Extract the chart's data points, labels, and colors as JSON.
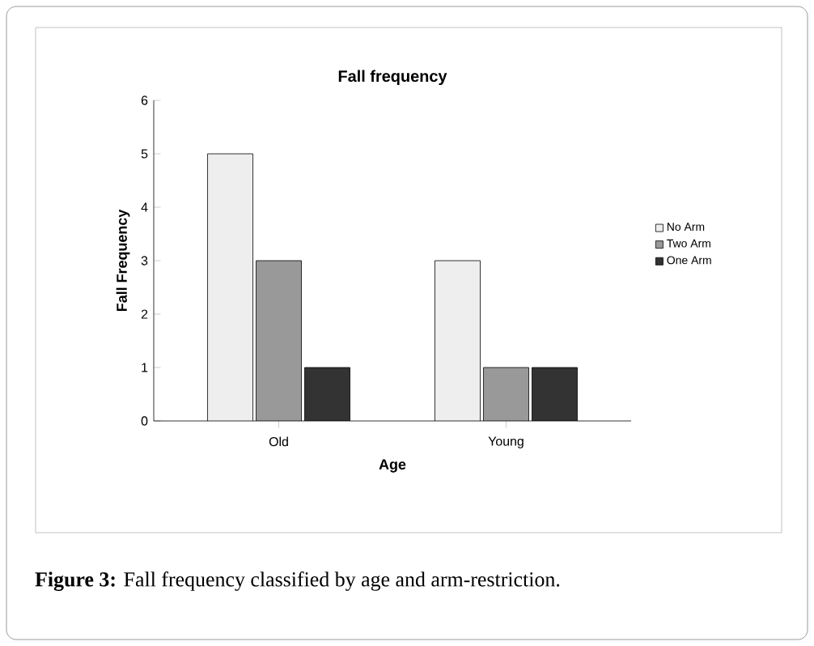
{
  "chart_data": {
    "type": "bar",
    "title": "Fall frequency",
    "xlabel": "Age",
    "ylabel": "Fall Frequency",
    "categories": [
      "Old",
      "Young"
    ],
    "series": [
      {
        "name": "No Arm",
        "color": "#eeeeee",
        "values": [
          5,
          3
        ]
      },
      {
        "name": "Two Arm",
        "color": "#999999",
        "values": [
          3,
          1
        ]
      },
      {
        "name": "One Arm",
        "color": "#333333",
        "values": [
          1,
          1
        ]
      }
    ],
    "ylim": [
      0,
      6
    ],
    "yticks": [
      0,
      1,
      2,
      3,
      4,
      5,
      6
    ],
    "grid": false,
    "legend": "right",
    "annotations": [
      "**Figure 3:** Fall frequency classified by age and arm-restriction."
    ]
  }
}
